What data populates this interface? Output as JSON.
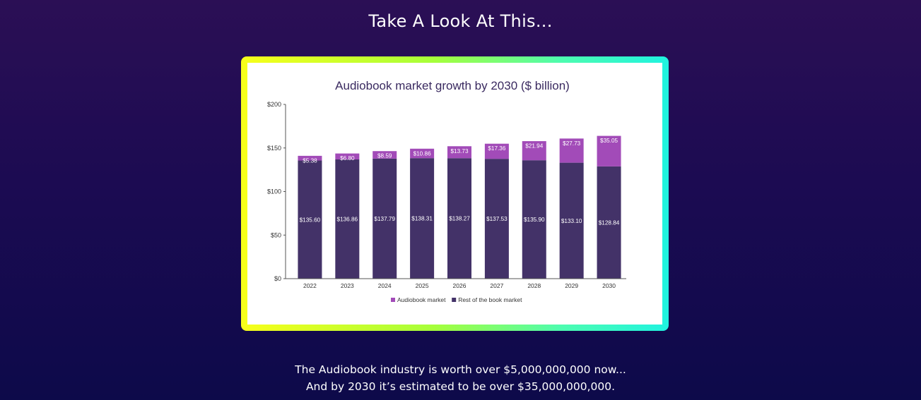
{
  "page": {
    "heading": "Take A Look At This...",
    "caption_line1": "The Audiobook industry is worth over $5,000,000,000 now...",
    "caption_line2": "And by 2030 it’s estimated to be over $35,000,000,000."
  },
  "colors": {
    "audiobook": "#a24bb8",
    "rest": "#433268",
    "title": "#3a2a60",
    "axis": "#555555"
  },
  "chart_data": {
    "type": "bar",
    "stacked": true,
    "title": "Audiobook market growth by 2030 ($ billion)",
    "xlabel": "",
    "ylabel": "",
    "ylim": [
      0,
      200
    ],
    "yticks": [
      0,
      50,
      100,
      150,
      200
    ],
    "ytick_labels": [
      "$0",
      "$50",
      "$100",
      "$150",
      "$200"
    ],
    "categories": [
      "2022",
      "2023",
      "2024",
      "2025",
      "2026",
      "2027",
      "2028",
      "2029",
      "2030"
    ],
    "series": [
      {
        "name": "Rest of the book market",
        "color_key": "rest",
        "values": [
          135.6,
          136.86,
          137.79,
          138.31,
          138.27,
          137.53,
          135.9,
          133.1,
          128.84
        ],
        "labels": [
          "$135.60",
          "$136.86",
          "$137.79",
          "$138.31",
          "$138.27",
          "$137.53",
          "$135.90",
          "$133.10",
          "$128.84"
        ]
      },
      {
        "name": "Audiobook market",
        "color_key": "audiobook",
        "values": [
          5.38,
          6.8,
          8.59,
          10.86,
          13.73,
          17.36,
          21.94,
          27.73,
          35.05
        ],
        "labels": [
          "$5.38",
          "$6.80",
          "$8.59",
          "$10.86",
          "$13.73",
          "$17.36",
          "$21.94",
          "$27.73",
          "$35.05"
        ]
      }
    ],
    "legend": [
      {
        "label": "Audiobook market",
        "color_key": "audiobook"
      },
      {
        "label": "Rest of the book market",
        "color_key": "rest"
      }
    ],
    "legend_position": "bottom-center",
    "grid": false
  }
}
